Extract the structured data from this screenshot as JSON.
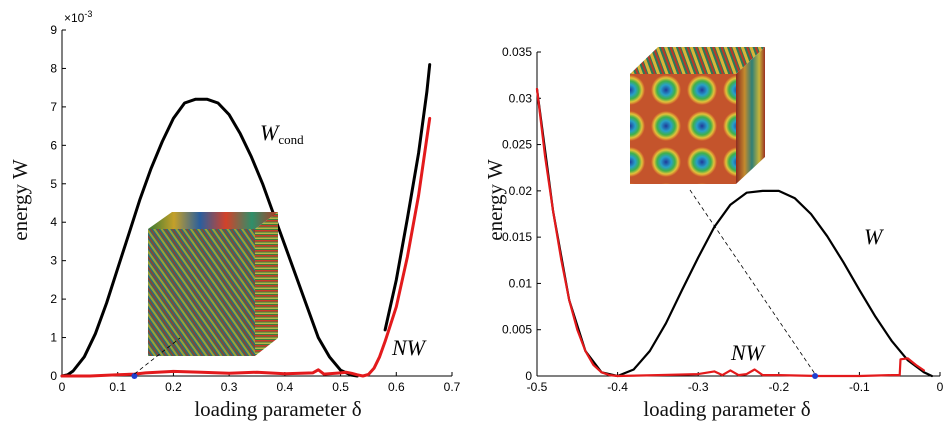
{
  "chart_data": [
    {
      "type": "line",
      "title": "",
      "xlabel": "loading parameter δ",
      "ylabel": "energy W",
      "xlim": [
        0,
        0.7
      ],
      "ylim": [
        0,
        0.009
      ],
      "y_exponent_label": "×10",
      "y_exponent_power": "-3",
      "x_ticks": [
        "0",
        "0.1",
        "0.2",
        "0.3",
        "0.4",
        "0.5",
        "0.6",
        "0.7"
      ],
      "y_ticks": [
        "0",
        "1",
        "2",
        "3",
        "4",
        "5",
        "6",
        "7",
        "8",
        "9"
      ],
      "annotations": [
        {
          "main": "W",
          "sub": "cond"
        },
        {
          "main": "NW",
          "sub": ""
        }
      ],
      "series": [
        {
          "color": "#000000",
          "x": [
            0,
            0.01,
            0.02,
            0.04,
            0.06,
            0.08,
            0.1,
            0.12,
            0.14,
            0.16,
            0.18,
            0.2,
            0.22,
            0.24,
            0.26,
            0.28,
            0.3,
            0.32,
            0.34,
            0.36,
            0.38,
            0.4,
            0.42,
            0.44,
            0.46,
            0.48,
            0.5,
            0.52,
            0.53
          ],
          "y": [
            0,
            3e-05,
            0.00013,
            0.0005,
            0.0011,
            0.0019,
            0.0028,
            0.0037,
            0.0046,
            0.0054,
            0.0061,
            0.0067,
            0.0071,
            0.0072,
            0.0072,
            0.0071,
            0.0068,
            0.0063,
            0.0057,
            0.005,
            0.0042,
            0.0034,
            0.0026,
            0.0018,
            0.001,
            0.0005,
            0.00015,
            2e-05,
            0
          ]
        },
        {
          "color": "#000000",
          "x": [
            0.58,
            0.6,
            0.62,
            0.64,
            0.655,
            0.66
          ],
          "y": [
            0.0012,
            0.0025,
            0.0041,
            0.0058,
            0.0074,
            0.0081
          ]
        },
        {
          "color": "#e31a1c",
          "x": [
            0,
            0.05,
            0.1,
            0.13,
            0.15,
            0.2,
            0.25,
            0.3,
            0.35,
            0.4,
            0.45,
            0.46,
            0.47,
            0.5,
            0.51,
            0.52,
            0.53,
            0.54,
            0.55,
            0.56,
            0.57,
            0.58,
            0.6,
            0.62,
            0.64,
            0.655,
            0.66
          ],
          "y": [
            0,
            0,
            3e-05,
            5e-05,
            8e-05,
            0.00012,
            0.0001,
            7e-05,
            0.0001,
            6e-05,
            8e-05,
            0.00016,
            5e-05,
            8e-05,
            0.0001,
            7e-05,
            3e-05,
            0,
            4e-05,
            0.0002,
            0.0005,
            0.0009,
            0.0018,
            0.0031,
            0.0047,
            0.0062,
            0.0067
          ]
        }
      ],
      "highlight_point": {
        "x": 0.13,
        "y": 0,
        "color": "#1f3fd0"
      },
      "inset_caption": ""
    },
    {
      "type": "line",
      "title": "",
      "xlabel": "loading parameter δ",
      "ylabel": "energy W",
      "xlim": [
        -0.5,
        0
      ],
      "ylim": [
        0,
        0.035
      ],
      "x_ticks": [
        "-0.5",
        "-0.4",
        "-0.3",
        "-0.2",
        "-0.1",
        "0"
      ],
      "y_ticks": [
        "0",
        "0.005",
        "0.01",
        "0.015",
        "0.02",
        "0.025",
        "0.03",
        "0.035"
      ],
      "annotations": [
        {
          "main": "W",
          "sub": ""
        },
        {
          "main": "NW",
          "sub": ""
        }
      ],
      "series": [
        {
          "color": "#000000",
          "x": [
            -0.5,
            -0.48,
            -0.46,
            -0.44,
            -0.42,
            -0.4,
            -0.38,
            -0.36,
            -0.34,
            -0.32,
            -0.3,
            -0.28,
            -0.26,
            -0.24,
            -0.22,
            -0.2,
            -0.18,
            -0.16,
            -0.14,
            -0.12,
            -0.1,
            -0.08,
            -0.06,
            -0.04,
            -0.02,
            -0.01
          ],
          "y": [
            0.031,
            0.0178,
            0.0082,
            0.0027,
            0.0004,
            0,
            0.0007,
            0.0027,
            0.0057,
            0.0093,
            0.0128,
            0.0161,
            0.0185,
            0.0198,
            0.02,
            0.02,
            0.0192,
            0.0175,
            0.0151,
            0.0123,
            0.0093,
            0.0064,
            0.0038,
            0.0017,
            0.0004,
            0
          ]
        },
        {
          "color": "#e31a1c",
          "x": [
            -0.5,
            -0.49,
            -0.48,
            -0.47,
            -0.46,
            -0.45,
            -0.44,
            -0.43,
            -0.42,
            -0.41,
            -0.4,
            -0.35,
            -0.3,
            -0.28,
            -0.27,
            -0.26,
            -0.25,
            -0.24,
            -0.23,
            -0.22,
            -0.2,
            -0.15,
            -0.1,
            -0.06,
            -0.05,
            -0.049,
            -0.04,
            -0.03,
            -0.02
          ],
          "y": [
            0.031,
            0.0237,
            0.0178,
            0.0126,
            0.0082,
            0.005,
            0.0027,
            0.0012,
            0.0004,
            0.0001,
            0,
            0.0001,
            0.0002,
            0.0005,
            0.0001,
            0.0006,
            0.0001,
            0.0002,
            0.0007,
            0.0001,
            0.0001,
            0,
            0,
            0.0001,
            0.0001,
            0.0018,
            0.0019,
            0.0012,
            0.0006
          ]
        }
      ],
      "highlight_point": {
        "x": -0.155,
        "y": 0,
        "color": "#1f3fd0"
      },
      "inset_caption": ""
    }
  ]
}
